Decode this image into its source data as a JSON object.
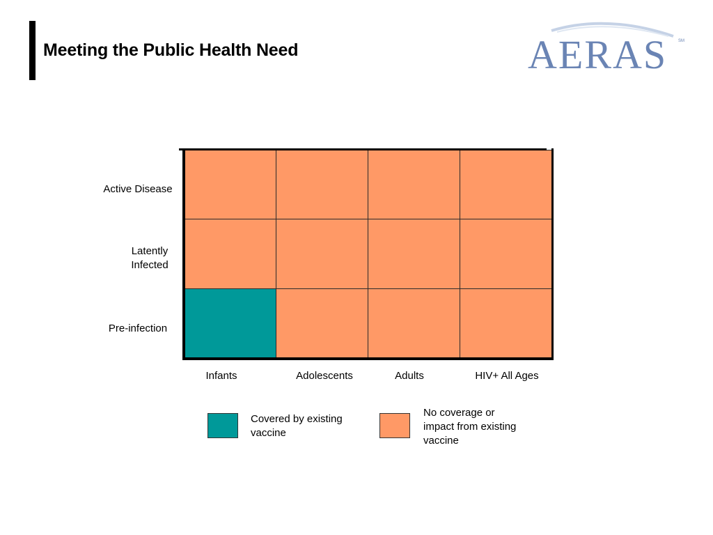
{
  "title": "Meeting the Public Health Need",
  "logo": {
    "text": "AERAS",
    "mark": "SM"
  },
  "colors": {
    "covered": "#009999",
    "not_covered": "#FF9966",
    "grid_line": "#2a2a2a"
  },
  "rows": [
    "Active Disease",
    "Latently Infected",
    "Pre-infection"
  ],
  "columns": [
    "Infants",
    "Adolescents",
    "Adults",
    "HIV+ All Ages"
  ],
  "cells": [
    [
      "not_covered",
      "not_covered",
      "not_covered",
      "not_covered"
    ],
    [
      "not_covered",
      "not_covered",
      "not_covered",
      "not_covered"
    ],
    [
      "covered",
      "not_covered",
      "not_covered",
      "not_covered"
    ]
  ],
  "legend": {
    "covered": "Covered by existing vaccine",
    "not_covered": "No coverage or impact from existing vaccine"
  }
}
